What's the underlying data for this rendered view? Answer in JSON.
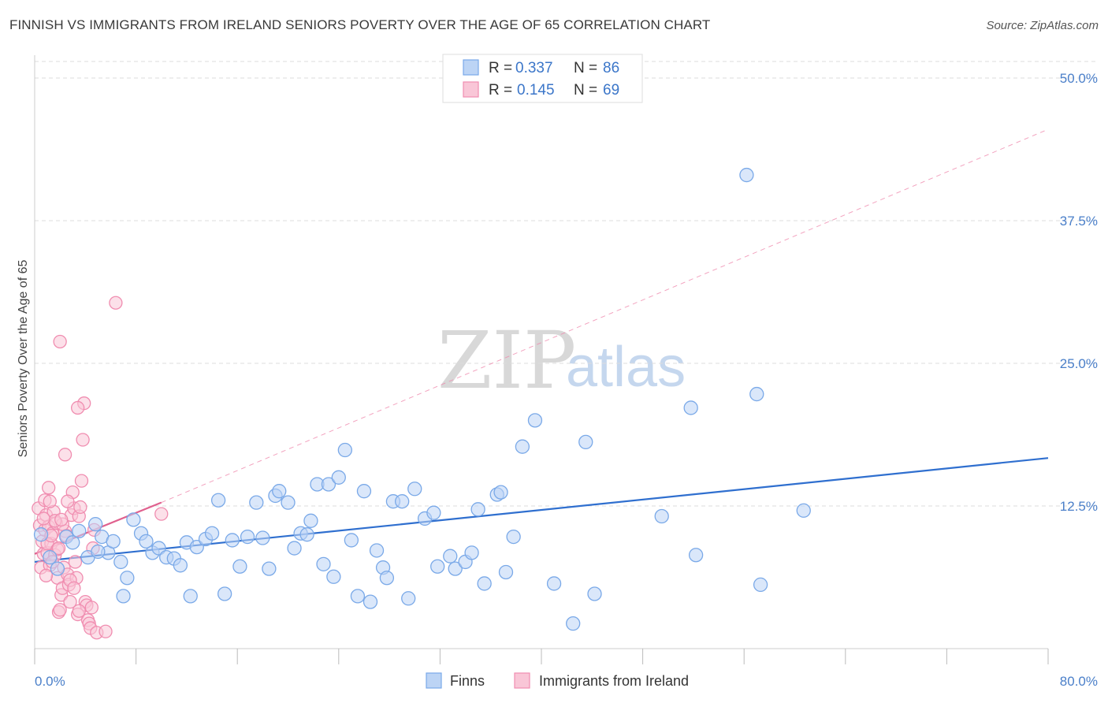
{
  "title": "FINNISH VS IMMIGRANTS FROM IRELAND SENIORS POVERTY OVER THE AGE OF 65 CORRELATION CHART",
  "source": "Source: ZipAtlas.com",
  "watermark": {
    "zip": "ZIP",
    "atlas": "atlas"
  },
  "colors": {
    "finns": "#7aa9e8",
    "finns_fill": "#bcd4f5",
    "finns_line": "#2f6fcf",
    "ireland": "#f08db0",
    "ireland_fill": "#f9c6d7",
    "ireland_line": "#e0608e",
    "axis_label": "#4a7fc9",
    "grid": "#dddddd"
  },
  "legend_box": {
    "rows": [
      {
        "r_label": "R =",
        "r_value": "0.337",
        "n_label": "N =",
        "n_value": "86"
      },
      {
        "r_label": "R =",
        "r_value": "0.145",
        "n_label": "N =",
        "n_value": "69"
      }
    ]
  },
  "bottom_legend": [
    "Finns",
    "Immigrants from Ireland"
  ],
  "chart_data": {
    "type": "scatter",
    "title": "FINNISH VS IMMIGRANTS FROM IRELAND SENIORS POVERTY OVER THE AGE OF 65 CORRELATION CHART",
    "xlabel": "",
    "ylabel": "Seniors Poverty Over the Age of 65",
    "xlim": [
      0,
      80
    ],
    "ylim": [
      0,
      52
    ],
    "x_tick_labels": [
      "0.0%",
      "80.0%"
    ],
    "y_ticks": [
      12.5,
      25.0,
      37.5,
      50.0
    ],
    "y_tick_labels": [
      "12.5%",
      "25.0%",
      "37.5%",
      "50.0%"
    ],
    "grid": "horizontal dashed",
    "legend_position": "top-center",
    "series": [
      {
        "name": "Finns",
        "r": 0.337,
        "n": 86,
        "trend": {
          "x": [
            0,
            80
          ],
          "y": [
            7.6,
            16.7
          ]
        },
        "points": [
          [
            0.5,
            10.0
          ],
          [
            1.2,
            8.0
          ],
          [
            1.8,
            7.0
          ],
          [
            2.5,
            9.8
          ],
          [
            3.0,
            9.3
          ],
          [
            3.5,
            10.3
          ],
          [
            4.2,
            8.0
          ],
          [
            4.8,
            10.9
          ],
          [
            5.3,
            9.8
          ],
          [
            5.8,
            8.4
          ],
          [
            6.2,
            9.4
          ],
          [
            6.8,
            7.6
          ],
          [
            7.3,
            6.2
          ],
          [
            7.8,
            11.3
          ],
          [
            8.4,
            10.1
          ],
          [
            8.8,
            9.4
          ],
          [
            9.3,
            8.4
          ],
          [
            9.8,
            8.8
          ],
          [
            10.4,
            8.0
          ],
          [
            11.0,
            7.9
          ],
          [
            11.5,
            7.3
          ],
          [
            12.0,
            9.3
          ],
          [
            12.3,
            4.6
          ],
          [
            12.8,
            8.9
          ],
          [
            13.5,
            9.6
          ],
          [
            14.0,
            10.1
          ],
          [
            14.5,
            13.0
          ],
          [
            15.0,
            4.8
          ],
          [
            15.6,
            9.5
          ],
          [
            16.2,
            7.2
          ],
          [
            16.8,
            9.8
          ],
          [
            17.5,
            12.8
          ],
          [
            18.0,
            9.7
          ],
          [
            18.5,
            7.0
          ],
          [
            19.0,
            13.4
          ],
          [
            19.3,
            13.8
          ],
          [
            20.0,
            12.8
          ],
          [
            20.5,
            8.8
          ],
          [
            21.0,
            10.1
          ],
          [
            21.5,
            10.0
          ],
          [
            21.8,
            11.2
          ],
          [
            22.3,
            14.4
          ],
          [
            22.8,
            7.4
          ],
          [
            23.2,
            14.4
          ],
          [
            23.6,
            6.3
          ],
          [
            24.0,
            15.0
          ],
          [
            24.5,
            17.4
          ],
          [
            25.0,
            9.5
          ],
          [
            25.5,
            4.6
          ],
          [
            26.0,
            13.8
          ],
          [
            26.5,
            4.1
          ],
          [
            27.0,
            8.6
          ],
          [
            27.5,
            7.1
          ],
          [
            27.8,
            6.2
          ],
          [
            28.3,
            12.9
          ],
          [
            29.0,
            12.9
          ],
          [
            29.5,
            4.4
          ],
          [
            30.0,
            14.0
          ],
          [
            30.8,
            11.4
          ],
          [
            31.5,
            11.9
          ],
          [
            31.8,
            7.2
          ],
          [
            32.8,
            8.1
          ],
          [
            33.2,
            7.0
          ],
          [
            34.0,
            7.6
          ],
          [
            34.5,
            8.4
          ],
          [
            35.0,
            12.2
          ],
          [
            35.5,
            5.7
          ],
          [
            36.5,
            13.5
          ],
          [
            36.8,
            13.7
          ],
          [
            37.2,
            6.7
          ],
          [
            37.8,
            9.8
          ],
          [
            38.5,
            17.7
          ],
          [
            39.5,
            20.0
          ],
          [
            41.0,
            5.7
          ],
          [
            42.5,
            2.2
          ],
          [
            43.5,
            18.1
          ],
          [
            44.2,
            4.8
          ],
          [
            49.5,
            11.6
          ],
          [
            51.8,
            21.1
          ],
          [
            52.2,
            8.2
          ],
          [
            56.2,
            41.5
          ],
          [
            57.0,
            22.3
          ],
          [
            57.3,
            5.6
          ],
          [
            60.7,
            12.1
          ],
          [
            7.0,
            4.6
          ],
          [
            5.0,
            8.5
          ]
        ]
      },
      {
        "name": "Immigrants from Ireland",
        "r": 0.145,
        "n": 69,
        "trend": {
          "x": [
            0,
            10
          ],
          "y": [
            8.3,
            12.8
          ]
        },
        "trend_extension": {
          "x": [
            10,
            80
          ],
          "y": [
            12.8,
            45.5
          ]
        },
        "points": [
          [
            0.3,
            12.3
          ],
          [
            0.4,
            10.8
          ],
          [
            0.5,
            7.1
          ],
          [
            0.6,
            9.4
          ],
          [
            0.7,
            8.3
          ],
          [
            0.8,
            10.4
          ],
          [
            0.9,
            11.7
          ],
          [
            1.0,
            8.4
          ],
          [
            1.1,
            10.7
          ],
          [
            1.2,
            7.3
          ],
          [
            1.3,
            9.2
          ],
          [
            1.4,
            10.1
          ],
          [
            1.5,
            12.0
          ],
          [
            1.6,
            8.2
          ],
          [
            1.7,
            11.0
          ],
          [
            1.8,
            6.2
          ],
          [
            1.9,
            3.2
          ],
          [
            2.0,
            3.4
          ],
          [
            2.1,
            4.7
          ],
          [
            2.2,
            5.3
          ],
          [
            2.3,
            7.1
          ],
          [
            2.4,
            10.3
          ],
          [
            2.5,
            9.9
          ],
          [
            2.6,
            6.5
          ],
          [
            2.7,
            5.6
          ],
          [
            2.8,
            4.1
          ],
          [
            2.9,
            11.7
          ],
          [
            3.0,
            13.7
          ],
          [
            3.1,
            12.3
          ],
          [
            3.2,
            7.6
          ],
          [
            3.3,
            6.2
          ],
          [
            3.4,
            3.0
          ],
          [
            3.5,
            11.6
          ],
          [
            3.6,
            12.4
          ],
          [
            3.7,
            14.7
          ],
          [
            3.8,
            18.3
          ],
          [
            3.9,
            21.5
          ],
          [
            4.0,
            4.1
          ],
          [
            4.1,
            3.8
          ],
          [
            4.2,
            2.5
          ],
          [
            4.3,
            2.2
          ],
          [
            4.4,
            1.8
          ],
          [
            4.5,
            3.6
          ],
          [
            4.6,
            8.8
          ],
          [
            4.7,
            10.4
          ],
          [
            1.0,
            9.2
          ],
          [
            1.4,
            7.6
          ],
          [
            1.8,
            8.7
          ],
          [
            2.2,
            10.9
          ],
          [
            2.6,
            12.9
          ],
          [
            1.1,
            14.1
          ],
          [
            0.8,
            13.0
          ],
          [
            2.4,
            17.0
          ],
          [
            2.0,
            26.9
          ],
          [
            3.4,
            21.1
          ],
          [
            6.4,
            30.3
          ],
          [
            4.9,
            1.4
          ],
          [
            5.6,
            1.5
          ],
          [
            10.0,
            11.8
          ],
          [
            1.3,
            9.9
          ],
          [
            0.9,
            6.4
          ],
          [
            1.6,
            11.2
          ],
          [
            2.8,
            6.0
          ],
          [
            3.1,
            5.3
          ],
          [
            2.1,
            11.3
          ],
          [
            0.7,
            11.4
          ],
          [
            1.9,
            8.8
          ],
          [
            1.2,
            12.9
          ],
          [
            3.5,
            3.3
          ]
        ]
      }
    ]
  }
}
